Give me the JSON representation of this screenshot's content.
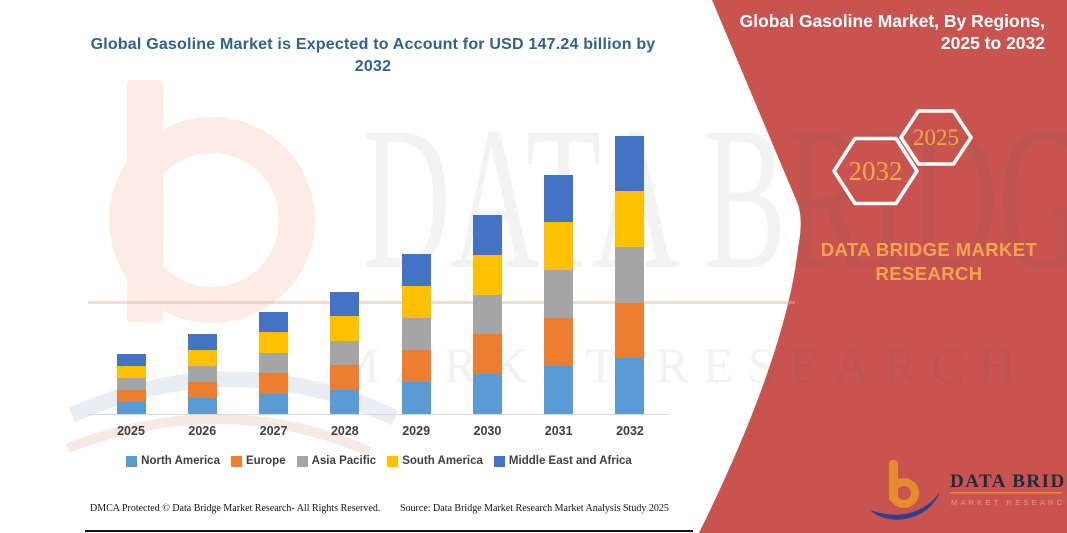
{
  "title": "Global Gasoline Market is Expected to Account for USD 147.24 billion by 2032",
  "side_panel": {
    "panel_color": "#c8534f",
    "heading_line1": "Global Gasoline Market, By Regions,",
    "heading_line2": "2025 to 2032",
    "badges": {
      "large": "2032",
      "small": "2025"
    },
    "badge_text_color": "#f2a944",
    "brand_caption_line1": "DATA BRIDGE MARKET",
    "brand_caption_line2": "RESEARCH"
  },
  "watermark": {
    "line1": "DATA BRIDGE",
    "line2": "MARKET RESEARCH"
  },
  "logo": {
    "name_text": "DATA BRIDGE",
    "subtitle_text": "MARKET RESEARCH"
  },
  "footer": {
    "left_text": "DMCA Protected © Data Bridge Market Research- All Rights Reserved.",
    "source_text": "Source: Data Bridge Market Research Market Analysis Study 2025"
  },
  "chart_data": {
    "type": "bar",
    "stacked": true,
    "title": "Global Gasoline Market is Expected to Account for USD 147.24 billion by 2032",
    "unit": "USD billion",
    "categories": [
      "2025",
      "2026",
      "2027",
      "2028",
      "2029",
      "2030",
      "2031",
      "2032"
    ],
    "series": [
      {
        "name": "North America",
        "color": "#5b9bd5",
        "values": [
          6.36,
          8.48,
          10.8,
          12.92,
          16.94,
          21.08,
          25.32,
          29.45
        ]
      },
      {
        "name": "Europe",
        "color": "#ed7d31",
        "values": [
          6.36,
          8.48,
          10.8,
          12.92,
          16.94,
          21.08,
          25.32,
          29.45
        ]
      },
      {
        "name": "Asia Pacific",
        "color": "#a5a5a5",
        "values": [
          6.36,
          8.48,
          10.8,
          12.92,
          16.94,
          21.08,
          25.32,
          29.45
        ]
      },
      {
        "name": "South America",
        "color": "#ffc000",
        "values": [
          6.36,
          8.48,
          10.8,
          12.92,
          16.94,
          21.08,
          25.32,
          29.45
        ]
      },
      {
        "name": "Middle East and Africa",
        "color": "#4472c4",
        "values": [
          6.36,
          8.48,
          10.8,
          12.92,
          16.94,
          21.08,
          25.32,
          29.45
        ]
      }
    ],
    "totals": [
      31.8,
      42.4,
      54.0,
      64.6,
      84.7,
      105.4,
      126.6,
      147.24
    ],
    "ylim": [
      0,
      156
    ],
    "xlabel": "",
    "ylabel": "",
    "grid": false,
    "legend_position": "bottom"
  }
}
